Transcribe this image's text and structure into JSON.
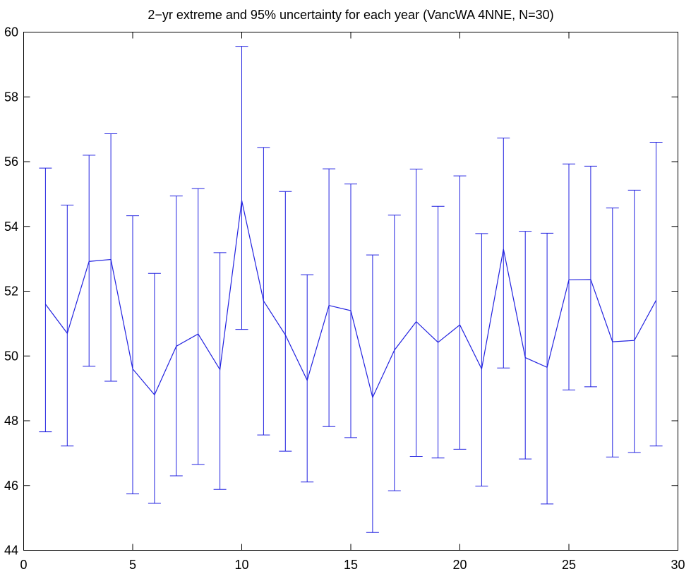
{
  "chart_data": {
    "type": "errorbar-line",
    "title": "2−yr extreme and 95% uncertainty for each year (VancWA 4NNE, N=30)",
    "xlabel": "",
    "ylabel": "",
    "xlim": [
      0,
      30
    ],
    "ylim": [
      44,
      60
    ],
    "xticks": [
      0,
      5,
      10,
      15,
      20,
      25,
      30
    ],
    "yticks": [
      44,
      46,
      48,
      50,
      52,
      54,
      56,
      58,
      60
    ],
    "xtick_labels": [
      "0",
      "5",
      "10",
      "15",
      "20",
      "25",
      "30"
    ],
    "ytick_labels": [
      "44",
      "46",
      "48",
      "50",
      "52",
      "54",
      "56",
      "58",
      "60"
    ],
    "grid": false,
    "legend": "none",
    "series": [
      {
        "x": [
          1,
          2,
          3,
          4,
          5,
          6,
          7,
          8,
          9,
          10,
          11,
          12,
          13,
          14,
          15,
          16,
          17,
          18,
          19,
          20,
          21,
          22,
          23,
          24,
          25,
          26,
          27,
          28,
          29
        ],
        "y": [
          51.6,
          50.7,
          52.92,
          52.98,
          49.6,
          48.8,
          50.3,
          50.68,
          49.58,
          54.8,
          51.7,
          50.65,
          49.25,
          51.56,
          51.4,
          48.72,
          50.18,
          51.06,
          50.42,
          50.96,
          49.6,
          53.3,
          49.95,
          49.65,
          52.35,
          52.36,
          50.44,
          50.48,
          51.72
        ],
        "lower": [
          47.66,
          47.22,
          49.68,
          49.22,
          45.74,
          45.45,
          46.3,
          46.65,
          45.88,
          50.82,
          47.56,
          47.06,
          46.11,
          47.82,
          47.48,
          44.55,
          45.84,
          46.9,
          46.85,
          47.12,
          45.98,
          49.63,
          46.82,
          45.43,
          48.95,
          49.05,
          46.88,
          47.02,
          47.22
        ],
        "upper": [
          55.8,
          54.66,
          56.2,
          56.86,
          54.33,
          52.55,
          54.94,
          55.17,
          53.19,
          59.56,
          56.44,
          55.08,
          52.51,
          55.78,
          55.31,
          53.12,
          54.35,
          55.77,
          54.62,
          55.56,
          53.78,
          56.73,
          53.85,
          53.79,
          55.93,
          55.86,
          54.57,
          55.12,
          56.6
        ]
      }
    ]
  },
  "colors": {
    "series": "#2222e0",
    "axes": "#000000",
    "background": "#ffffff"
  }
}
